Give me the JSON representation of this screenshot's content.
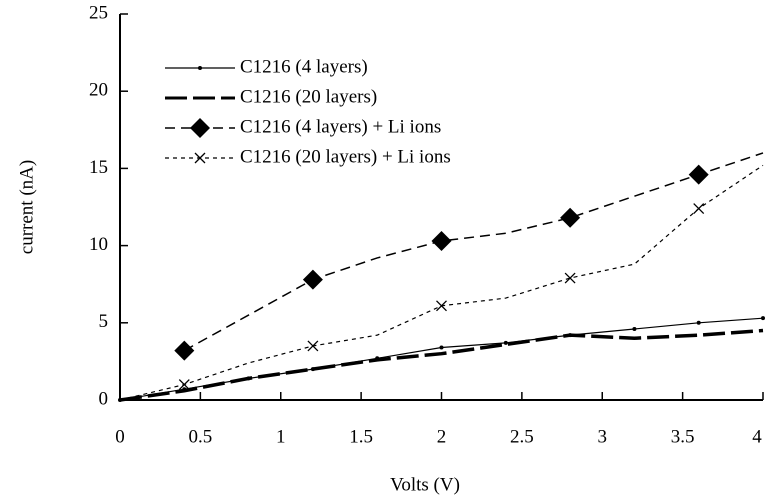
{
  "chart_data": {
    "type": "line",
    "x_label": "Volts (V)",
    "y_label": "current (nA)",
    "x": [
      0,
      0.4,
      0.8,
      1.2,
      1.6,
      2,
      2.4,
      2.8,
      3.2,
      3.6,
      4
    ],
    "series": [
      {
        "name": "C1216 (4 layers)",
        "color": "#000000",
        "values": [
          0,
          0.7,
          1.4,
          2,
          2.7,
          3.4,
          3.7,
          4.2,
          4.6,
          5,
          5.3
        ]
      },
      {
        "name": "C1216 (20 layers)",
        "color": "#000000",
        "values": [
          0,
          0.6,
          1.4,
          2,
          2.6,
          3,
          3.6,
          4.2,
          4,
          4.2,
          4.5
        ]
      },
      {
        "name": "C1216 (4 layers) + Li ions",
        "color": "#000000",
        "values": [
          null,
          3.2,
          5.5,
          7.8,
          9.2,
          10.3,
          10.8,
          11.8,
          13.2,
          14.6,
          16
        ]
      },
      {
        "name": "C1216 (20 layers) + Li ions",
        "color": "#000000",
        "values": [
          0,
          1,
          2.4,
          3.5,
          4.2,
          6.1,
          6.6,
          7.9,
          8.8,
          12.4,
          15.2
        ]
      }
    ],
    "xlim": [
      0,
      4
    ],
    "xticks": [
      0,
      0.5,
      1,
      1.5,
      2,
      2.5,
      3,
      3.5,
      4
    ],
    "ylim": [
      0,
      25
    ],
    "yticks": [
      0,
      5,
      10,
      15,
      20,
      25
    ],
    "legend": "upper left",
    "grid": false
  }
}
